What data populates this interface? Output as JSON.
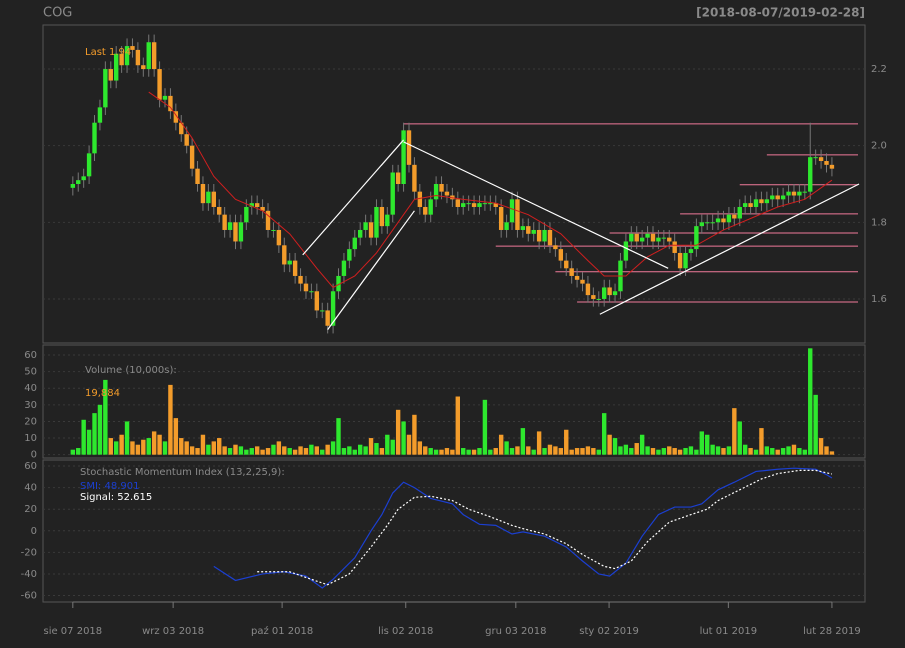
{
  "chart_data": {
    "type": "candlestick",
    "title": "COG",
    "range_label": "[2018-08-07/2019-02-28]",
    "last_label": "Last 1.94",
    "up_color": "#2ee82e",
    "down_color": "#f39c2b",
    "grid": true,
    "xlim": [
      -5.5,
      146.1
    ],
    "xticks": [
      {
        "value": 0,
        "label": "sie 07 2018"
      },
      {
        "value": 18.5,
        "label": "wrz 03 2018"
      },
      {
        "value": 38.6,
        "label": "paź 01 2018"
      },
      {
        "value": 61.4,
        "label": "lis 02 2018"
      },
      {
        "value": 81.7,
        "label": "gru 03 2018"
      },
      {
        "value": 98.9,
        "label": "sty 02 2019"
      },
      {
        "value": 120.9,
        "label": "lut 01 2019"
      },
      {
        "value": 140,
        "label": "lut 28 2019"
      }
    ],
    "ylim": [
      1.485,
      2.315
    ],
    "yticks": [
      1.6,
      1.8,
      {
        "value": 2.0,
        "label": "2.0"
      },
      2.2
    ],
    "candles": {
      "open": [
        1.89,
        1.9,
        1.91,
        1.92,
        1.98,
        2.06,
        2.1,
        2.2,
        2.17,
        2.24,
        2.21,
        2.26,
        2.25,
        2.21,
        2.2,
        2.27,
        2.2,
        2.12,
        2.13,
        2.09,
        2.06,
        2.03,
        2.0,
        1.94,
        1.9,
        1.85,
        1.88,
        1.84,
        1.82,
        1.78,
        1.8,
        1.75,
        1.8,
        1.84,
        1.85,
        1.84,
        1.83,
        1.78,
        1.78,
        1.74,
        1.69,
        1.7,
        1.66,
        1.64,
        1.62,
        1.62,
        1.57,
        1.57,
        1.53,
        1.62,
        1.66,
        1.7,
        1.73,
        1.76,
        1.78,
        1.8,
        1.76,
        1.84,
        1.79,
        1.82,
        1.93,
        1.9,
        2.04,
        1.95,
        1.88,
        1.84,
        1.82,
        1.86,
        1.9,
        1.88,
        1.87,
        1.86,
        1.84,
        1.85,
        1.85,
        1.84,
        1.85,
        1.85,
        1.85,
        1.84,
        1.78,
        1.8,
        1.86,
        1.78,
        1.79,
        1.77,
        1.78,
        1.75,
        1.78,
        1.74,
        1.73,
        1.7,
        1.68,
        1.66,
        1.65,
        1.64,
        1.61,
        1.6,
        1.6,
        1.63,
        1.61,
        1.62,
        1.7,
        1.75,
        1.77,
        1.75,
        1.76,
        1.77,
        1.75,
        1.76,
        1.76,
        1.75,
        1.72,
        1.68,
        1.72,
        1.73,
        1.79,
        1.8,
        1.8,
        1.8,
        1.81,
        1.8,
        1.82,
        1.81,
        1.84,
        1.85,
        1.84,
        1.86,
        1.85,
        1.86,
        1.87,
        1.86,
        1.87,
        1.88,
        1.87,
        1.88,
        1.88,
        1.97,
        1.97,
        1.96,
        1.95
      ],
      "high": [
        1.92,
        1.93,
        1.94,
        2.0,
        2.08,
        2.12,
        2.22,
        2.22,
        2.26,
        2.26,
        2.28,
        2.28,
        2.27,
        2.23,
        2.29,
        2.29,
        2.22,
        2.15,
        2.15,
        2.11,
        2.08,
        2.05,
        2.02,
        1.96,
        1.92,
        1.9,
        1.9,
        1.86,
        1.84,
        1.82,
        1.82,
        1.82,
        1.86,
        1.87,
        1.87,
        1.86,
        1.85,
        1.8,
        1.8,
        1.76,
        1.72,
        1.72,
        1.68,
        1.66,
        1.64,
        1.64,
        1.59,
        1.59,
        1.64,
        1.68,
        1.72,
        1.75,
        1.78,
        1.8,
        1.82,
        1.82,
        1.86,
        1.86,
        1.84,
        1.95,
        1.95,
        2.06,
        2.06,
        1.97,
        1.9,
        1.86,
        1.88,
        1.92,
        1.92,
        1.9,
        1.89,
        1.88,
        1.87,
        1.87,
        1.87,
        1.87,
        1.87,
        1.87,
        1.87,
        1.86,
        1.82,
        1.88,
        1.88,
        1.81,
        1.81,
        1.8,
        1.8,
        1.8,
        1.8,
        1.76,
        1.75,
        1.72,
        1.7,
        1.68,
        1.67,
        1.66,
        1.63,
        1.62,
        1.65,
        1.65,
        1.64,
        1.72,
        1.77,
        1.79,
        1.79,
        1.78,
        1.79,
        1.79,
        1.78,
        1.78,
        1.78,
        1.77,
        1.74,
        1.74,
        1.75,
        1.81,
        1.82,
        1.82,
        1.82,
        1.83,
        1.83,
        1.84,
        1.84,
        1.86,
        1.87,
        1.87,
        1.88,
        1.88,
        1.88,
        1.89,
        1.89,
        1.89,
        1.9,
        1.9,
        1.9,
        1.9,
        2.06,
        1.99,
        1.99,
        1.98,
        1.97
      ],
      "low": [
        1.87,
        1.88,
        1.89,
        1.9,
        1.96,
        2.04,
        2.08,
        2.15,
        2.15,
        2.19,
        2.19,
        2.23,
        2.19,
        2.18,
        2.18,
        2.18,
        2.1,
        2.1,
        2.07,
        2.04,
        2.01,
        1.98,
        1.92,
        1.88,
        1.83,
        1.83,
        1.82,
        1.8,
        1.76,
        1.76,
        1.73,
        1.73,
        1.78,
        1.82,
        1.82,
        1.81,
        1.76,
        1.76,
        1.72,
        1.67,
        1.67,
        1.64,
        1.62,
        1.6,
        1.6,
        1.55,
        1.55,
        1.51,
        1.51,
        1.6,
        1.64,
        1.68,
        1.71,
        1.74,
        1.76,
        1.74,
        1.74,
        1.77,
        1.77,
        1.8,
        1.88,
        1.88,
        1.93,
        1.86,
        1.82,
        1.8,
        1.8,
        1.84,
        1.86,
        1.85,
        1.84,
        1.82,
        1.82,
        1.83,
        1.82,
        1.82,
        1.83,
        1.83,
        1.82,
        1.76,
        1.76,
        1.78,
        1.76,
        1.76,
        1.75,
        1.75,
        1.73,
        1.73,
        1.72,
        1.71,
        1.68,
        1.66,
        1.64,
        1.63,
        1.62,
        1.59,
        1.58,
        1.58,
        1.58,
        1.59,
        1.59,
        1.6,
        1.68,
        1.73,
        1.73,
        1.73,
        1.74,
        1.73,
        1.73,
        1.74,
        1.73,
        1.7,
        1.66,
        1.66,
        1.7,
        1.71,
        1.77,
        1.78,
        1.78,
        1.78,
        1.78,
        1.78,
        1.79,
        1.79,
        1.82,
        1.82,
        1.82,
        1.83,
        1.83,
        1.84,
        1.84,
        1.84,
        1.85,
        1.85,
        1.85,
        1.86,
        1.86,
        1.95,
        1.94,
        1.93,
        1.92
      ],
      "close": [
        1.9,
        1.91,
        1.92,
        1.98,
        2.06,
        2.1,
        2.2,
        2.17,
        2.24,
        2.21,
        2.26,
        2.25,
        2.21,
        2.2,
        2.27,
        2.2,
        2.12,
        2.13,
        2.09,
        2.06,
        2.03,
        2.0,
        1.94,
        1.9,
        1.85,
        1.88,
        1.84,
        1.82,
        1.78,
        1.8,
        1.75,
        1.8,
        1.84,
        1.85,
        1.84,
        1.83,
        1.78,
        1.78,
        1.74,
        1.69,
        1.7,
        1.66,
        1.64,
        1.62,
        1.62,
        1.57,
        1.57,
        1.53,
        1.62,
        1.66,
        1.7,
        1.73,
        1.76,
        1.78,
        1.8,
        1.76,
        1.84,
        1.79,
        1.82,
        1.93,
        1.9,
        2.04,
        1.95,
        1.88,
        1.84,
        1.82,
        1.86,
        1.9,
        1.88,
        1.87,
        1.86,
        1.84,
        1.85,
        1.85,
        1.84,
        1.85,
        1.85,
        1.85,
        1.84,
        1.78,
        1.8,
        1.86,
        1.78,
        1.79,
        1.77,
        1.78,
        1.75,
        1.78,
        1.74,
        1.73,
        1.7,
        1.68,
        1.66,
        1.65,
        1.64,
        1.61,
        1.6,
        1.6,
        1.63,
        1.61,
        1.62,
        1.7,
        1.75,
        1.77,
        1.75,
        1.76,
        1.77,
        1.75,
        1.76,
        1.76,
        1.75,
        1.72,
        1.68,
        1.72,
        1.73,
        1.79,
        1.8,
        1.8,
        1.8,
        1.81,
        1.8,
        1.82,
        1.81,
        1.84,
        1.85,
        1.84,
        1.86,
        1.85,
        1.86,
        1.87,
        1.86,
        1.87,
        1.88,
        1.87,
        1.88,
        1.88,
        1.97,
        1.97,
        1.96,
        1.95,
        1.94
      ]
    },
    "moving_average": {
      "color": "#d01f1f",
      "x": [
        14,
        18,
        22,
        26,
        30,
        35,
        40,
        45,
        48,
        52,
        56,
        60,
        63,
        67,
        72,
        78,
        84,
        90,
        95,
        98,
        102,
        106,
        110,
        115,
        120,
        125,
        130,
        135,
        140
      ],
      "values": [
        2.14,
        2.1,
        2.02,
        1.92,
        1.86,
        1.83,
        1.77,
        1.68,
        1.63,
        1.66,
        1.72,
        1.8,
        1.86,
        1.87,
        1.86,
        1.85,
        1.82,
        1.77,
        1.7,
        1.66,
        1.66,
        1.71,
        1.74,
        1.74,
        1.78,
        1.81,
        1.84,
        1.86,
        1.91
      ]
    },
    "trendlines": [
      {
        "x": [
          42.4,
          61
        ],
        "y": [
          1.715,
          2.015
        ]
      },
      {
        "x": [
          47,
          63
        ],
        "y": [
          1.52,
          1.83
        ]
      },
      {
        "x": [
          61,
          109.8
        ],
        "y": [
          2.01,
          1.68
        ]
      },
      {
        "x": [
          97.2,
          145
        ],
        "y": [
          1.56,
          1.9
        ]
      }
    ],
    "levels": [
      {
        "value": 2.057,
        "from": 61
      },
      {
        "value": 1.976,
        "from": 128
      },
      {
        "value": 1.898,
        "from": 123
      },
      {
        "value": 1.822,
        "from": 112
      },
      {
        "value": 1.772,
        "from": 99
      },
      {
        "value": 1.738,
        "from": 78
      },
      {
        "value": 1.671,
        "from": 89
      },
      {
        "value": 1.592,
        "from": 93
      }
    ],
    "volume": {
      "label": "Volume (10,000s):",
      "last_label": "19,884",
      "ylim": [
        -2,
        66
      ],
      "yticks": [
        0,
        10,
        20,
        30,
        40,
        50,
        60
      ],
      "values": [
        3,
        4,
        21,
        15,
        25,
        30,
        45,
        10,
        8,
        12,
        20,
        8,
        6,
        9,
        10,
        14,
        12,
        8,
        42,
        22,
        10,
        8,
        5,
        4,
        12,
        6,
        8,
        10,
        5,
        4,
        6,
        5,
        3,
        4,
        5,
        3,
        4,
        6,
        8,
        5,
        4,
        3,
        5,
        4,
        6,
        5,
        3,
        6,
        8,
        22,
        4,
        5,
        3,
        6,
        5,
        10,
        7,
        4,
        12,
        9,
        27,
        20,
        12,
        24,
        8,
        5,
        4,
        3,
        3,
        4,
        3,
        35,
        4,
        3,
        3,
        4,
        33,
        3,
        4,
        12,
        8,
        4,
        5,
        16,
        5,
        3,
        14,
        4,
        6,
        5,
        4,
        15,
        3,
        4,
        4,
        5,
        4,
        3,
        25,
        12,
        10,
        5,
        6,
        4,
        7,
        12,
        5,
        4,
        3,
        4,
        5,
        4,
        3,
        4,
        5,
        3,
        14,
        12,
        6,
        5,
        4,
        5,
        28,
        20,
        6,
        4,
        3,
        16,
        5,
        4,
        3,
        4,
        5,
        6,
        4,
        3,
        64,
        36,
        10,
        5,
        1.9884
      ]
    },
    "smi": {
      "label": "Stochastic Momentum Index (13,2,25,9):",
      "ylim": [
        -66,
        65.6
      ],
      "yticks": [
        -60,
        -40,
        -20,
        0,
        20,
        40,
        60
      ],
      "series": [
        {
          "name": "SMI: 48.901",
          "color": "#1b3fd1",
          "x": [
            26,
            30,
            35,
            39,
            43,
            46,
            48,
            52,
            55,
            57,
            59,
            61,
            63,
            66,
            70,
            72,
            75,
            78,
            81,
            83,
            87,
            91,
            94,
            97,
            99,
            102,
            105,
            108,
            111,
            114,
            116,
            119,
            122,
            126,
            130,
            133,
            137,
            139,
            140
          ],
          "values": [
            -33,
            -46,
            -40,
            -38,
            -42,
            -53,
            -45,
            -25,
            0,
            15,
            35,
            45,
            40,
            30,
            25,
            15,
            6,
            5,
            -3,
            -1,
            -5,
            -15,
            -28,
            -40,
            -42,
            -30,
            -5,
            15,
            22,
            22,
            25,
            38,
            45,
            55,
            57,
            58,
            57,
            52,
            48.901
          ]
        },
        {
          "name": "Signal: 52.615",
          "color": "#ffffff",
          "x": [
            34,
            40,
            44,
            47,
            51,
            55,
            58,
            60,
            63,
            66,
            70,
            73,
            77,
            81,
            83,
            87,
            91,
            94,
            98,
            100,
            103,
            106,
            110,
            114,
            117,
            119,
            123,
            127,
            130,
            134,
            137,
            140
          ],
          "values": [
            -38,
            -38,
            -45,
            -50,
            -40,
            -15,
            5,
            20,
            31,
            32,
            28,
            20,
            13,
            5,
            2,
            -3,
            -12,
            -22,
            -33,
            -35,
            -28,
            -10,
            8,
            15,
            20,
            28,
            38,
            48,
            53,
            56,
            56,
            52.615
          ]
        }
      ]
    }
  }
}
